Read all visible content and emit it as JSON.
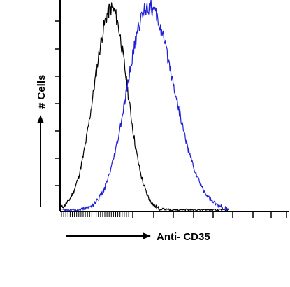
{
  "chart_data": {
    "type": "line",
    "xlabel": "Anti- CD35",
    "ylabel": "# Cells",
    "series": [
      {
        "color": "#000000",
        "peak": 0.3,
        "width_left": 0.105,
        "width_right": 0.095,
        "height": 0.96
      },
      {
        "color": "#1f1fd6",
        "peak": 0.52,
        "width_left": 0.125,
        "width_right": 0.155,
        "height": 0.97
      }
    ],
    "grid": false,
    "legend": "none"
  }
}
